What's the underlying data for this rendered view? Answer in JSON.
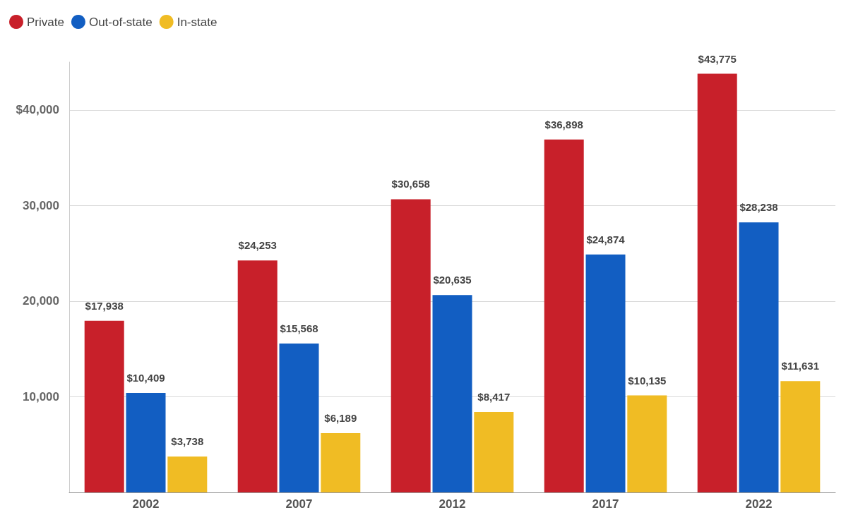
{
  "chart_data": {
    "type": "bar",
    "categories": [
      "2002",
      "2007",
      "2012",
      "2017",
      "2022"
    ],
    "series": [
      {
        "name": "Private",
        "color": "#c8202a",
        "values": [
          17938,
          24253,
          30658,
          36898,
          43775
        ],
        "value_labels": [
          "$17,938",
          "$24,253",
          "$30,658",
          "$36,898",
          "$43,775"
        ]
      },
      {
        "name": "Out-of-state",
        "color": "#125ec2",
        "values": [
          10409,
          15568,
          20635,
          24874,
          28238
        ],
        "value_labels": [
          "$10,409",
          "$15,568",
          "$20,635",
          "$24,874",
          "$28,238"
        ]
      },
      {
        "name": "In-state",
        "color": "#f0bc24",
        "values": [
          3738,
          6189,
          8417,
          10135,
          11631
        ],
        "value_labels": [
          "$3,738",
          "$6,189",
          "$8,417",
          "$10,135",
          "$11,631"
        ]
      }
    ],
    "ylim": [
      0,
      45000
    ],
    "yticks": [
      {
        "value": 10000,
        "label": "10,000"
      },
      {
        "value": 20000,
        "label": "20,000"
      },
      {
        "value": 30000,
        "label": "30,000"
      },
      {
        "value": 40000,
        "label": "$40,000"
      }
    ],
    "grid": "y",
    "legend": "top left"
  }
}
